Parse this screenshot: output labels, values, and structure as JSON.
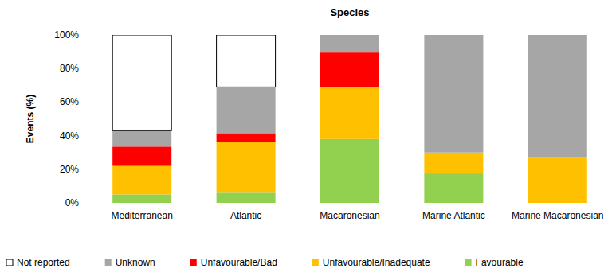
{
  "chart_data": {
    "type": "bar",
    "stacked": true,
    "title": "Species",
    "y_label": "Events (%)",
    "categories": [
      "Mediterranean",
      "Atlantic",
      "Macaronesian",
      "Marine Atlantic",
      "Marine Macaronesian"
    ],
    "series": [
      {
        "name": "Favourable",
        "color": "#92d050",
        "values": [
          5,
          6,
          38,
          17.5,
          0
        ]
      },
      {
        "name": "Unfavourable/Inadequate",
        "color": "#ffc000",
        "values": [
          17,
          30,
          31,
          12.5,
          27
        ]
      },
      {
        "name": "Unfavourable/Bad",
        "color": "#ff0000",
        "values": [
          11.5,
          5.5,
          20.5,
          0,
          0
        ]
      },
      {
        "name": "Unknown",
        "color": "#a6a6a6",
        "values": [
          9.5,
          27.5,
          10.5,
          70,
          73
        ]
      },
      {
        "name": "Not reported",
        "color": "#ffffff",
        "values": [
          57,
          31,
          0,
          0,
          0
        ]
      }
    ],
    "ylim": [
      0,
      100
    ],
    "yticks": [
      {
        "value": 0,
        "label": "0%"
      },
      {
        "value": 20,
        "label": "20%"
      },
      {
        "value": 40,
        "label": "40%"
      },
      {
        "value": 60,
        "label": "60%"
      },
      {
        "value": 80,
        "label": "80%"
      },
      {
        "value": 100,
        "label": "100%"
      }
    ],
    "grid": false,
    "legend": "bottom"
  }
}
